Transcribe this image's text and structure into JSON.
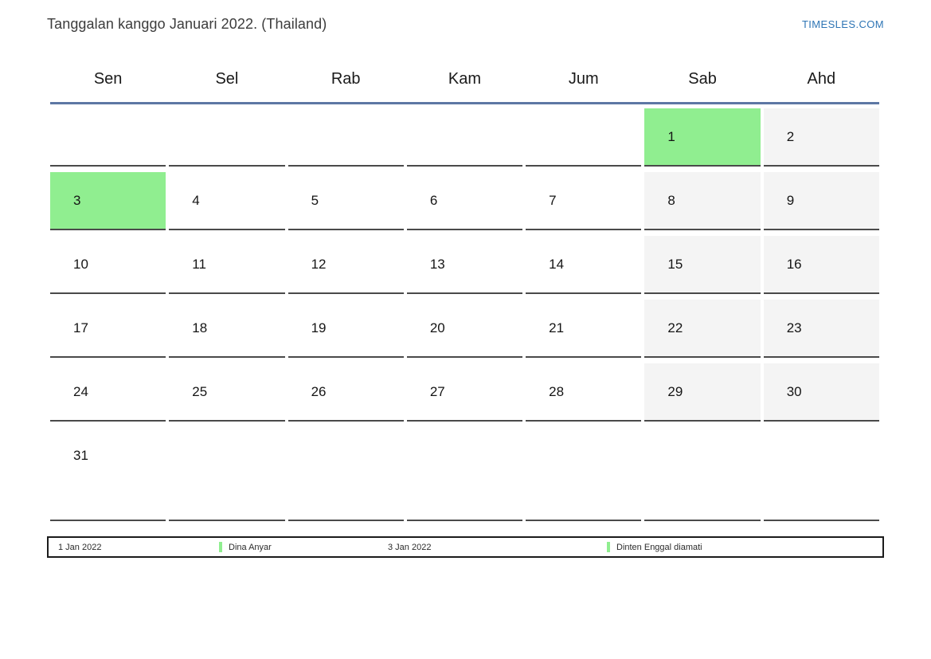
{
  "header": {
    "title": "Tanggalan kanggo Januari 2022. (Thailand)",
    "site_link": "TIMESLES.COM"
  },
  "calendar": {
    "weekdays": [
      "Sen",
      "Sel",
      "Rab",
      "Kam",
      "Jum",
      "Sab",
      "Ahd"
    ],
    "weeks": [
      {
        "tall": false,
        "cells": [
          {
            "day": "",
            "type": "empty"
          },
          {
            "day": "",
            "type": "empty"
          },
          {
            "day": "",
            "type": "empty"
          },
          {
            "day": "",
            "type": "empty"
          },
          {
            "day": "",
            "type": "empty"
          },
          {
            "day": "1",
            "type": "holiday"
          },
          {
            "day": "2",
            "type": "weekend"
          }
        ]
      },
      {
        "tall": false,
        "cells": [
          {
            "day": "3",
            "type": "holiday"
          },
          {
            "day": "4",
            "type": "day"
          },
          {
            "day": "5",
            "type": "day"
          },
          {
            "day": "6",
            "type": "day"
          },
          {
            "day": "7",
            "type": "day"
          },
          {
            "day": "8",
            "type": "weekend"
          },
          {
            "day": "9",
            "type": "weekend"
          }
        ]
      },
      {
        "tall": false,
        "cells": [
          {
            "day": "10",
            "type": "day"
          },
          {
            "day": "11",
            "type": "day"
          },
          {
            "day": "12",
            "type": "day"
          },
          {
            "day": "13",
            "type": "day"
          },
          {
            "day": "14",
            "type": "day"
          },
          {
            "day": "15",
            "type": "weekend"
          },
          {
            "day": "16",
            "type": "weekend"
          }
        ]
      },
      {
        "tall": false,
        "cells": [
          {
            "day": "17",
            "type": "day"
          },
          {
            "day": "18",
            "type": "day"
          },
          {
            "day": "19",
            "type": "day"
          },
          {
            "day": "20",
            "type": "day"
          },
          {
            "day": "21",
            "type": "day"
          },
          {
            "day": "22",
            "type": "weekend"
          },
          {
            "day": "23",
            "type": "weekend"
          }
        ]
      },
      {
        "tall": false,
        "cells": [
          {
            "day": "24",
            "type": "day"
          },
          {
            "day": "25",
            "type": "day"
          },
          {
            "day": "26",
            "type": "day"
          },
          {
            "day": "27",
            "type": "day"
          },
          {
            "day": "28",
            "type": "day"
          },
          {
            "day": "29",
            "type": "weekend"
          },
          {
            "day": "30",
            "type": "weekend"
          }
        ]
      },
      {
        "tall": true,
        "cells": [
          {
            "day": "31",
            "type": "day"
          },
          {
            "day": "",
            "type": "empty"
          },
          {
            "day": "",
            "type": "empty"
          },
          {
            "day": "",
            "type": "empty"
          },
          {
            "day": "",
            "type": "empty"
          },
          {
            "day": "",
            "type": "empty"
          },
          {
            "day": "",
            "type": "empty"
          }
        ]
      }
    ]
  },
  "legend": {
    "items": [
      {
        "label": "1 Jan 2022",
        "marker": false
      },
      {
        "label": "Dina Anyar",
        "marker": true
      },
      {
        "label": "3 Jan 2022",
        "marker": false
      },
      {
        "label": "Dinten Enggal diamati",
        "marker": true
      }
    ]
  },
  "colors": {
    "highlight": "#90ee90",
    "weekend_bg": "#f4f4f4",
    "accent_line": "#5d77a4",
    "link": "#2e75b5",
    "cell_border": "#4a4a4a",
    "legend_border": "#1b1b1b"
  }
}
